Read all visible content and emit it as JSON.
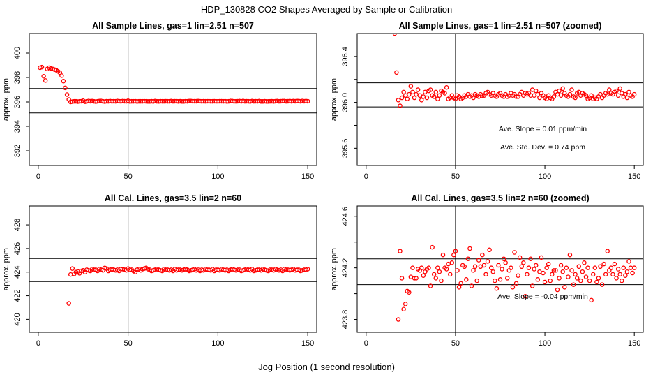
{
  "title": "HDP_130828  CO2 Shapes Averaged by Sample or Calibration",
  "xlabel": "Jog Position (1 second resolution)",
  "colors": {
    "points": "#ff0000",
    "axes": "#000000"
  },
  "chart_data": [
    {
      "type": "scatter",
      "title": "All Sample Lines, gas=1 lin=2.51 n=507",
      "ylabel": "approx. ppm",
      "xlim": [
        -5,
        155
      ],
      "ylim": [
        390.8,
        401.6
      ],
      "xticks": [
        0,
        50,
        100,
        150
      ],
      "yticks": [
        392,
        394,
        396,
        398,
        400
      ],
      "ref_vline": 50,
      "ref_hlines": [
        397.1,
        395.1
      ],
      "annotations": [],
      "x": [
        1,
        2,
        3,
        4,
        5,
        6,
        7,
        8,
        9,
        10,
        11,
        12,
        13,
        14,
        15,
        16,
        17,
        18,
        19,
        20,
        21,
        22,
        23,
        24,
        25,
        26,
        27,
        28,
        29,
        30,
        31,
        32,
        33,
        34,
        35,
        36,
        37,
        38,
        39,
        40,
        41,
        42,
        43,
        44,
        45,
        46,
        47,
        48,
        49,
        50,
        51,
        52,
        53,
        54,
        55,
        56,
        57,
        58,
        59,
        60,
        61,
        62,
        63,
        64,
        65,
        66,
        67,
        68,
        69,
        70,
        71,
        72,
        73,
        74,
        75,
        76,
        77,
        78,
        79,
        80,
        81,
        82,
        83,
        84,
        85,
        86,
        87,
        88,
        89,
        90,
        91,
        92,
        93,
        94,
        95,
        96,
        97,
        98,
        99,
        100,
        101,
        102,
        103,
        104,
        105,
        106,
        107,
        108,
        109,
        110,
        111,
        112,
        113,
        114,
        115,
        116,
        117,
        118,
        119,
        120,
        121,
        122,
        123,
        124,
        125,
        126,
        127,
        128,
        129,
        130,
        131,
        132,
        133,
        134,
        135,
        136,
        137,
        138,
        139,
        140,
        141,
        142,
        143,
        144,
        145,
        146,
        147,
        148,
        149,
        150
      ],
      "y": [
        398.8,
        398.85,
        398.1,
        397.75,
        398.7,
        398.8,
        398.75,
        398.7,
        398.65,
        398.6,
        398.5,
        398.4,
        398.15,
        397.7,
        397.15,
        396.6,
        396.2,
        396.0,
        396.03,
        396.05,
        396.05,
        396.03,
        396.05,
        396.06,
        396.1,
        396.02,
        396.05,
        396.08,
        396.06,
        396.07,
        396.05,
        396.03,
        396.05,
        396.07,
        396.08,
        396.05,
        396.03,
        396.06,
        396.05,
        396.07,
        396.05,
        396.06,
        396.05,
        396.08,
        396.06,
        396.05,
        396.07,
        396.06,
        396.05,
        396.1,
        396.04,
        396.05,
        396.05,
        396.06,
        396.04,
        396.05,
        396.05,
        396.05,
        396.06,
        396.05,
        396.04,
        396.04,
        396.06,
        396.04,
        396.07,
        396.05,
        396.04,
        396.06,
        396.05,
        396.05,
        396.06,
        396.05,
        396.05,
        396.07,
        396.05,
        396.06,
        396.06,
        396.04,
        396.06,
        396.04,
        396.04,
        396.06,
        396.05,
        396.07,
        396.07,
        396.06,
        396.06,
        396.06,
        396.07,
        396.06,
        396.05,
        396.06,
        396.05,
        396.06,
        396.06,
        396.05,
        396.05,
        396.06,
        396.05,
        396.05,
        396.06,
        396.06,
        396.05,
        396.06,
        396.04,
        396.05,
        396.08,
        396.07,
        396.05,
        396.05,
        396.06,
        396.07,
        396.05,
        396.08,
        396.05,
        396.06,
        396.05,
        396.04,
        396.07,
        396.05,
        396.06,
        396.05,
        396.07,
        396.04,
        396.04,
        396.06,
        396.04,
        396.04,
        396.05,
        396.06,
        396.04,
        396.06,
        396.07,
        396.05,
        396.06,
        396.07,
        396.07,
        396.05,
        396.06,
        396.07,
        396.05,
        396.07,
        396.06,
        396.08,
        396.07,
        396.05,
        396.08,
        396.06,
        396.07,
        396.06
      ]
    },
    {
      "type": "scatter",
      "title": "All Sample Lines, gas=1 lin=2.51 n=507 (zoomed)",
      "ylabel": "approx. ppm",
      "xlim": [
        -5,
        155
      ],
      "ylim": [
        395.45,
        396.6
      ],
      "xticks": [
        0,
        50,
        100,
        150
      ],
      "yticks": [
        395.6,
        395.8,
        396.0,
        396.2,
        396.4
      ],
      "ytick_labels": [
        "395.6",
        "",
        "396.0",
        "",
        "396.4"
      ],
      "ref_vline": 50,
      "ref_hlines": [
        396.17,
        395.96
      ],
      "annotations": [
        "Ave. Slope =  0.01  ppm/min",
        "Ave. Std. Dev. =  0.74  ppm"
      ],
      "x": [
        16,
        17,
        18,
        19,
        20,
        21,
        22,
        23,
        24,
        25,
        26,
        27,
        28,
        29,
        30,
        31,
        32,
        33,
        34,
        35,
        36,
        37,
        38,
        39,
        40,
        41,
        42,
        43,
        44,
        45,
        46,
        47,
        48,
        49,
        50,
        51,
        52,
        53,
        54,
        55,
        56,
        57,
        58,
        59,
        60,
        61,
        62,
        63,
        64,
        65,
        66,
        67,
        68,
        69,
        70,
        71,
        72,
        73,
        74,
        75,
        76,
        77,
        78,
        79,
        80,
        81,
        82,
        83,
        84,
        85,
        86,
        87,
        88,
        89,
        90,
        91,
        92,
        93,
        94,
        95,
        96,
        97,
        98,
        99,
        100,
        101,
        102,
        103,
        104,
        105,
        106,
        107,
        108,
        109,
        110,
        111,
        112,
        113,
        114,
        115,
        116,
        117,
        118,
        119,
        120,
        121,
        122,
        123,
        124,
        125,
        126,
        127,
        128,
        129,
        130,
        131,
        132,
        133,
        134,
        135,
        136,
        137,
        138,
        139,
        140,
        141,
        142,
        143,
        144,
        145,
        146,
        147,
        148,
        149,
        150
      ],
      "y": [
        396.6,
        396.26,
        396.02,
        395.97,
        396.04,
        396.09,
        396.06,
        396.03,
        396.07,
        396.14,
        396.09,
        396.04,
        396.07,
        396.11,
        396.06,
        396.02,
        396.05,
        396.09,
        396.04,
        396.1,
        396.11,
        396.06,
        396.05,
        396.09,
        396.03,
        396.06,
        396.1,
        396.09,
        396.08,
        396.13,
        396.03,
        396.04,
        396.06,
        396.04,
        396.03,
        396.06,
        396.05,
        396.03,
        396.04,
        396.06,
        396.05,
        396.07,
        396.05,
        396.06,
        396.04,
        396.07,
        396.06,
        396.05,
        396.07,
        396.06,
        396.06,
        396.08,
        396.09,
        396.07,
        396.06,
        396.08,
        396.06,
        396.05,
        396.07,
        396.08,
        396.06,
        396.05,
        396.07,
        396.05,
        396.06,
        396.08,
        396.06,
        396.07,
        396.05,
        396.05,
        396.07,
        396.09,
        396.06,
        396.08,
        396.07,
        396.08,
        396.06,
        396.11,
        396.06,
        396.1,
        396.07,
        396.04,
        396.08,
        396.06,
        396.04,
        396.03,
        396.06,
        396.04,
        396.03,
        396.05,
        396.09,
        396.07,
        396.1,
        396.06,
        396.12,
        396.08,
        396.06,
        396.05,
        396.07,
        396.11,
        396.05,
        396.04,
        396.08,
        396.09,
        396.06,
        396.08,
        396.07,
        396.06,
        396.03,
        396.04,
        396.06,
        396.03,
        396.04,
        396.03,
        396.05,
        396.07,
        396.04,
        396.06,
        396.08,
        396.07,
        396.11,
        396.08,
        396.07,
        396.09,
        396.1,
        396.06,
        396.12,
        396.08,
        396.05,
        396.07,
        396.04,
        396.09,
        396.06,
        396.05,
        396.07
      ]
    },
    {
      "type": "scatter",
      "title": "All Cal. Lines, gas=3.5 lin=2 n=60",
      "ylabel": "approx. ppm",
      "xlim": [
        -5,
        155
      ],
      "ylim": [
        418.9,
        429.6
      ],
      "xticks": [
        0,
        50,
        100,
        150
      ],
      "yticks": [
        420,
        422,
        424,
        426,
        428
      ],
      "ref_vline": 50,
      "ref_hlines": [
        425.15,
        423.2
      ],
      "annotations": [],
      "x": [
        17,
        18,
        19,
        20,
        21,
        22,
        23,
        24,
        25,
        26,
        27,
        28,
        29,
        30,
        31,
        32,
        33,
        34,
        35,
        36,
        37,
        38,
        39,
        40,
        41,
        42,
        43,
        44,
        45,
        46,
        47,
        48,
        49,
        50,
        51,
        52,
        53,
        54,
        55,
        56,
        57,
        58,
        59,
        60,
        61,
        62,
        63,
        64,
        65,
        66,
        67,
        68,
        69,
        70,
        71,
        72,
        73,
        74,
        75,
        76,
        77,
        78,
        79,
        80,
        81,
        82,
        83,
        84,
        85,
        86,
        87,
        88,
        89,
        90,
        91,
        92,
        93,
        94,
        95,
        96,
        97,
        98,
        99,
        100,
        101,
        102,
        103,
        104,
        105,
        106,
        107,
        108,
        109,
        110,
        111,
        112,
        113,
        114,
        115,
        116,
        117,
        118,
        119,
        120,
        121,
        122,
        123,
        124,
        125,
        126,
        127,
        128,
        129,
        130,
        131,
        132,
        133,
        134,
        135,
        136,
        137,
        138,
        139,
        140,
        141,
        142,
        143,
        144,
        145,
        146,
        147,
        148,
        149,
        150
      ],
      "y": [
        421.35,
        423.8,
        424.3,
        423.85,
        424.0,
        424.05,
        423.9,
        424.1,
        424.15,
        424.0,
        424.2,
        424.15,
        424.1,
        424.25,
        424.2,
        424.2,
        424.1,
        424.25,
        424.2,
        424.15,
        424.35,
        424.3,
        424.1,
        424.2,
        424.25,
        424.2,
        424.15,
        424.2,
        424.1,
        424.25,
        424.25,
        424.2,
        424.15,
        424.3,
        424.2,
        424.2,
        424.1,
        424.0,
        424.2,
        424.25,
        424.15,
        424.25,
        424.3,
        424.35,
        424.25,
        424.2,
        424.1,
        424.15,
        424.2,
        424.25,
        424.2,
        424.15,
        424.1,
        424.25,
        424.2,
        424.2,
        424.15,
        424.2,
        424.1,
        424.25,
        424.15,
        424.2,
        424.2,
        424.15,
        424.2,
        424.25,
        424.2,
        424.1,
        424.15,
        424.2,
        424.25,
        424.15,
        424.2,
        424.1,
        424.2,
        424.15,
        424.25,
        424.2,
        424.2,
        424.15,
        424.25,
        424.1,
        424.2,
        424.2,
        424.15,
        424.25,
        424.2,
        424.15,
        424.2,
        424.1,
        424.2,
        424.25,
        424.2,
        424.15,
        424.2,
        424.2,
        424.1,
        424.15,
        424.2,
        424.25,
        424.2,
        424.15,
        424.25,
        424.1,
        424.15,
        424.2,
        424.2,
        424.15,
        424.25,
        424.2,
        424.15,
        424.1,
        424.2,
        424.2,
        424.15,
        424.25,
        424.2,
        424.15,
        424.2,
        424.1,
        424.25,
        424.2,
        424.2,
        424.15,
        424.2,
        424.25,
        424.15,
        424.2,
        424.2,
        424.1,
        424.15,
        424.2,
        424.2,
        424.25
      ]
    },
    {
      "type": "scatter",
      "title": "All Cal. Lines, gas=3.5 lin=2 n=60 (zoomed)",
      "ylabel": "approx. ppm",
      "xlim": [
        -5,
        155
      ],
      "ylim": [
        423.7,
        424.68
      ],
      "xticks": [
        0,
        50,
        100,
        150
      ],
      "yticks": [
        423.8,
        424.0,
        424.2,
        424.4,
        424.6
      ],
      "ytick_labels": [
        "423.8",
        "",
        "424.2",
        "",
        "424.6"
      ],
      "ref_vline": 50,
      "ref_hlines": [
        424.27,
        424.07
      ],
      "annotations": [
        "Ave. Slope =  -0.04  ppm/min"
      ],
      "x": [
        18,
        19,
        20,
        21,
        22,
        23,
        24,
        25,
        26,
        27,
        28,
        29,
        30,
        31,
        32,
        33,
        34,
        35,
        36,
        37,
        38,
        39,
        40,
        41,
        42,
        43,
        44,
        45,
        46,
        47,
        48,
        49,
        50,
        51,
        52,
        53,
        54,
        55,
        56,
        57,
        58,
        59,
        60,
        61,
        62,
        63,
        64,
        65,
        66,
        67,
        68,
        69,
        70,
        71,
        72,
        73,
        74,
        75,
        76,
        77,
        78,
        79,
        80,
        81,
        82,
        83,
        84,
        85,
        86,
        87,
        88,
        89,
        90,
        91,
        92,
        93,
        94,
        95,
        96,
        97,
        98,
        99,
        100,
        101,
        102,
        103,
        104,
        105,
        106,
        107,
        108,
        109,
        110,
        111,
        112,
        113,
        114,
        115,
        116,
        117,
        118,
        119,
        120,
        121,
        122,
        123,
        124,
        125,
        126,
        127,
        128,
        129,
        130,
        131,
        132,
        133,
        134,
        135,
        136,
        137,
        138,
        139,
        140,
        141,
        142,
        143,
        144,
        145,
        146,
        147,
        148,
        149,
        150
      ],
      "y": [
        423.8,
        424.33,
        424.12,
        423.88,
        423.92,
        424.02,
        424.01,
        424.13,
        424.2,
        424.12,
        424.12,
        424.19,
        424.18,
        424.2,
        424.14,
        424.17,
        424.19,
        424.2,
        424.06,
        424.36,
        424.15,
        424.12,
        424.2,
        424.17,
        424.1,
        424.3,
        424.2,
        424.19,
        424.23,
        424.15,
        424.24,
        424.3,
        424.33,
        424.18,
        424.05,
        424.08,
        424.22,
        424.21,
        424.11,
        424.27,
        424.35,
        424.06,
        424.18,
        424.21,
        424.1,
        424.26,
        424.21,
        424.3,
        424.22,
        424.15,
        424.25,
        424.34,
        424.2,
        424.17,
        424.1,
        424.04,
        424.22,
        424.11,
        424.19,
        424.27,
        424.24,
        424.12,
        424.18,
        424.2,
        424.05,
        424.32,
        424.08,
        424.14,
        424.28,
        424.21,
        424.24,
        423.98,
        424.15,
        424.2,
        424.27,
        424.06,
        424.19,
        424.22,
        424.11,
        424.17,
        424.28,
        424.16,
        424.09,
        424.2,
        424.23,
        424.1,
        424.15,
        424.18,
        424.18,
        424.03,
        424.12,
        424.22,
        424.17,
        424.05,
        424.2,
        424.13,
        424.3,
        424.18,
        424.07,
        424.15,
        424.12,
        424.21,
        424.1,
        424.17,
        424.24,
        424.13,
        424.2,
        424.1,
        423.95,
        424.15,
        424.2,
        424.09,
        424.12,
        424.21,
        424.07,
        424.23,
        424.15,
        424.33,
        424.18,
        424.2,
        424.15,
        424.23,
        424.12,
        424.19,
        424.15,
        424.1,
        424.2,
        424.14,
        424.17,
        424.25,
        424.2,
        424.16,
        424.2
      ]
    }
  ]
}
